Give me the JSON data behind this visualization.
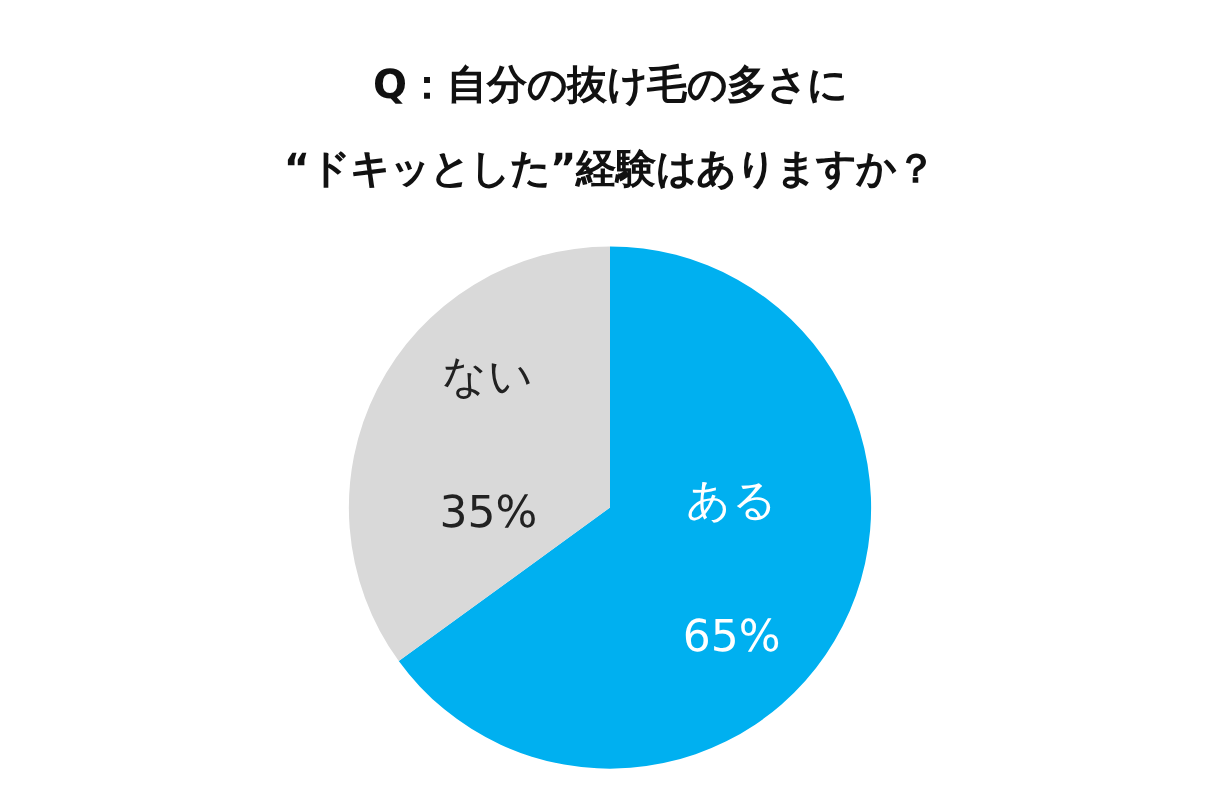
{
  "chart_data": {
    "type": "pie",
    "title": "Q：自分の抜け毛の多さに\n“ドキッとした”経験はありますか？",
    "categories": [
      "ある",
      "ない"
    ],
    "values": [
      65,
      35
    ],
    "value_labels": [
      "65%",
      "35%"
    ],
    "colors": [
      "#00b0f0",
      "#d9d9d9"
    ],
    "legend": false
  }
}
